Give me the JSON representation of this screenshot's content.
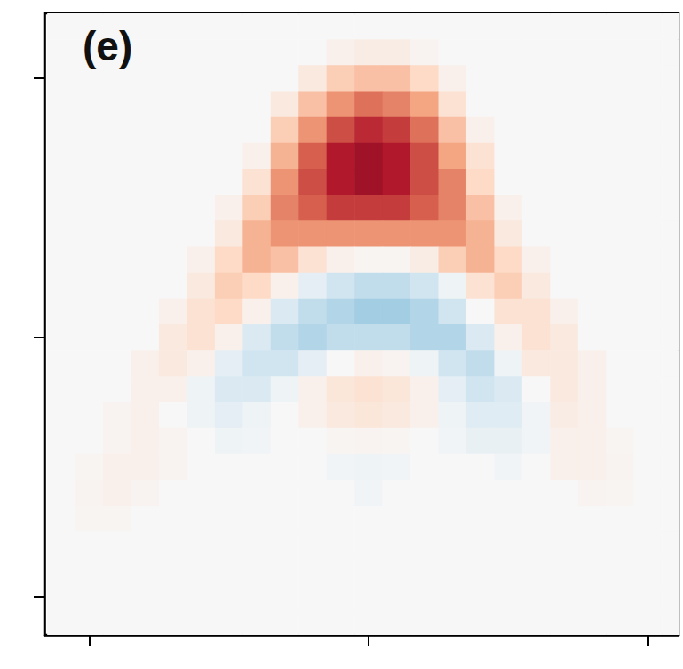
{
  "chart_data": {
    "type": "heatmap",
    "title": "(e)",
    "xlim": [
      -1.16,
      1.11
    ],
    "xticks": [
      -1,
      0,
      1
    ],
    "ylim": [
      -1.15,
      1.25
    ],
    "yticks": [
      -1,
      0,
      1
    ],
    "tick_labels": false,
    "grid": false,
    "zlim": [
      -1,
      1
    ],
    "x": [
      -1.1,
      -1.0,
      -0.9,
      -0.8,
      -0.7,
      -0.6,
      -0.5,
      -0.4,
      -0.3,
      -0.2,
      -0.1,
      0.0,
      0.1,
      0.2,
      0.3,
      0.4,
      0.5,
      0.6,
      0.7,
      0.8,
      0.9,
      1.0,
      1.1
    ],
    "y": [
      1.2,
      1.1,
      1.0,
      0.9,
      0.8,
      0.7,
      0.6,
      0.5,
      0.4,
      0.3,
      0.2,
      0.1,
      0.0,
      -0.1,
      -0.2,
      -0.3,
      -0.4,
      -0.5,
      -0.6,
      -0.7,
      -0.8,
      -0.9,
      -1.0,
      -1.1
    ],
    "cells": [
      [
        0,
        0,
        0,
        0,
        0,
        0,
        0,
        0,
        0,
        0,
        0,
        0,
        0,
        0,
        0,
        0,
        0,
        0,
        0,
        0,
        0,
        0,
        0
      ],
      [
        0,
        0,
        0,
        0,
        0,
        0,
        0,
        0,
        0,
        0,
        0.05,
        0.08,
        0.08,
        0.03,
        0,
        0,
        0,
        0,
        0,
        0,
        0,
        0,
        0
      ],
      [
        0,
        0,
        0,
        0,
        0,
        0,
        0,
        0,
        0,
        0.1,
        0.25,
        0.3,
        0.3,
        0.2,
        0.05,
        0,
        0,
        0,
        0,
        0,
        0,
        0,
        0
      ],
      [
        0,
        0,
        0,
        0,
        0,
        0,
        0,
        0,
        0.1,
        0.3,
        0.45,
        0.55,
        0.5,
        0.4,
        0.15,
        0,
        0,
        0,
        0,
        0,
        0,
        0,
        0
      ],
      [
        0,
        0,
        0,
        0,
        0,
        0,
        0,
        0,
        0.25,
        0.45,
        0.65,
        0.75,
        0.7,
        0.55,
        0.3,
        0.05,
        0,
        0,
        0,
        0,
        0,
        0,
        0
      ],
      [
        0,
        0,
        0,
        0,
        0,
        0,
        0,
        0.05,
        0.35,
        0.6,
        0.8,
        0.85,
        0.8,
        0.65,
        0.4,
        0.15,
        0,
        0,
        0,
        0,
        0,
        0,
        0
      ],
      [
        0,
        0,
        0,
        0,
        0,
        0,
        0,
        0.15,
        0.45,
        0.65,
        0.8,
        0.85,
        0.8,
        0.65,
        0.5,
        0.2,
        0,
        0,
        0,
        0,
        0,
        0,
        0
      ],
      [
        0,
        0,
        0,
        0,
        0,
        0,
        0.05,
        0.25,
        0.5,
        0.6,
        0.7,
        0.7,
        0.7,
        0.6,
        0.5,
        0.3,
        0.05,
        0,
        0,
        0,
        0,
        0,
        0
      ],
      [
        0,
        0,
        0,
        0,
        0,
        0,
        0.1,
        0.35,
        0.45,
        0.45,
        0.45,
        0.45,
        0.45,
        0.45,
        0.45,
        0.35,
        0.1,
        0,
        0,
        0,
        0,
        0,
        0
      ],
      [
        0,
        0,
        0,
        0,
        0,
        0.05,
        0.2,
        0.35,
        0.3,
        0.15,
        0.05,
        0.02,
        0.02,
        0.08,
        0.25,
        0.35,
        0.2,
        0.05,
        0,
        0,
        0,
        0,
        0
      ],
      [
        0,
        0,
        0,
        0,
        0,
        0.1,
        0.25,
        0.2,
        0.05,
        -0.1,
        -0.2,
        -0.25,
        -0.25,
        -0.2,
        -0.05,
        0.15,
        0.25,
        0.1,
        0,
        0,
        0,
        0,
        0
      ],
      [
        0,
        0,
        0,
        0,
        0.05,
        0.15,
        0.2,
        0.05,
        -0.15,
        -0.25,
        -0.3,
        -0.35,
        -0.35,
        -0.3,
        -0.2,
        0,
        0.15,
        0.15,
        0.05,
        0,
        0,
        0,
        0
      ],
      [
        0,
        0,
        0,
        0,
        0.1,
        0.15,
        0.05,
        -0.15,
        -0.25,
        -0.3,
        -0.25,
        -0.25,
        -0.25,
        -0.3,
        -0.3,
        -0.15,
        0.05,
        0.15,
        0.1,
        0,
        0,
        0,
        0
      ],
      [
        0,
        0,
        0,
        0.05,
        0.1,
        0.05,
        -0.1,
        -0.2,
        -0.2,
        -0.1,
        0,
        0.05,
        0.03,
        -0.05,
        -0.2,
        -0.25,
        -0.05,
        0.1,
        0.1,
        0.05,
        0,
        0,
        0
      ],
      [
        0,
        0,
        0,
        0.05,
        0.05,
        -0.05,
        -0.15,
        -0.15,
        -0.05,
        0.05,
        0.12,
        0.15,
        0.12,
        0.05,
        -0.1,
        -0.2,
        -0.15,
        0,
        0.1,
        0.05,
        0,
        0,
        0
      ],
      [
        0,
        0,
        0.03,
        0.05,
        0,
        -0.05,
        -0.1,
        -0.05,
        0,
        0.05,
        0.1,
        0.12,
        0.1,
        0.05,
        -0.05,
        -0.12,
        -0.12,
        -0.03,
        0.08,
        0.05,
        0,
        0,
        0
      ],
      [
        0,
        0,
        0.03,
        0.05,
        0.03,
        0,
        -0.05,
        -0.03,
        0,
        0,
        0.02,
        0.03,
        0.02,
        0,
        -0.03,
        -0.08,
        -0.08,
        -0.03,
        0.05,
        0.05,
        0.02,
        0,
        0
      ],
      [
        0,
        0.02,
        0.05,
        0.05,
        0.03,
        0,
        0,
        0,
        0,
        0,
        -0.03,
        -0.05,
        -0.03,
        0,
        0,
        0,
        -0.03,
        0,
        0.05,
        0.05,
        0.03,
        0,
        0
      ],
      [
        0,
        0.03,
        0.05,
        0.03,
        0,
        0,
        0,
        0,
        0,
        0,
        0,
        -0.03,
        0,
        0,
        0,
        0,
        0,
        0,
        0,
        0.03,
        0.02,
        0,
        0
      ],
      [
        0,
        0.02,
        0.02,
        0,
        0,
        0,
        0,
        0,
        0,
        0,
        0,
        0,
        0,
        0,
        0,
        0,
        0,
        0,
        0,
        0,
        0,
        0,
        0
      ],
      [
        0,
        0,
        0,
        0,
        0,
        0,
        0,
        0,
        0,
        0,
        0,
        0,
        0,
        0,
        0,
        0,
        0,
        0,
        0,
        0,
        0,
        0,
        0
      ],
      [
        0,
        0,
        0,
        0,
        0,
        0,
        0,
        0,
        0,
        0,
        0,
        0,
        0,
        0,
        0,
        0,
        0,
        0,
        0,
        0,
        0,
        0,
        0
      ],
      [
        0,
        0,
        0,
        0,
        0,
        0,
        0,
        0,
        0,
        0,
        0,
        0,
        0,
        0,
        0,
        0,
        0,
        0,
        0,
        0,
        0,
        0,
        0
      ],
      [
        0,
        0,
        0,
        0,
        0,
        0,
        0,
        0,
        0,
        0,
        0,
        0,
        0,
        0,
        0,
        0,
        0,
        0,
        0,
        0,
        0,
        0,
        0
      ]
    ]
  }
}
